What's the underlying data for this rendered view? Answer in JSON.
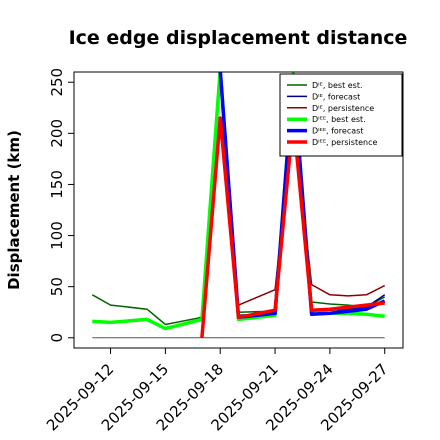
{
  "chart_data": {
    "type": "line",
    "title": "Ice edge displacement distance",
    "ylabel": "Displacement (km)",
    "xlabel": "",
    "ylim": [
      -10,
      260
    ],
    "yticks": [
      0,
      50,
      100,
      150,
      200,
      250
    ],
    "xlim": [
      "2025-09-10",
      "2025-09-28"
    ],
    "xticks": [
      "2025-09-12",
      "2025-09-15",
      "2025-09-18",
      "2025-09-21",
      "2025-09-24",
      "2025-09-27"
    ],
    "highlight_tick": "2025-09-18",
    "highlight_color": "#228B22",
    "grid": false,
    "legend_position": "top-right",
    "series": [
      {
        "name": "Dᴵᴱ, best est.",
        "color": "#006400",
        "lw": 1.5,
        "x": [
          "2025-09-11",
          "2025-09-12",
          "2025-09-14",
          "2025-09-15",
          "2025-09-17",
          "2025-09-18",
          "2025-09-19",
          "2025-09-21",
          "2025-09-22",
          "2025-09-23",
          "2025-09-24",
          "2025-09-25",
          "2025-09-26",
          "2025-09-27"
        ],
        "y": [
          42,
          32,
          28,
          13,
          20,
          265,
          25,
          26,
          260,
          35,
          33,
          32,
          30,
          40
        ]
      },
      {
        "name": "Dᴵᴱ, forecast",
        "color": "#00008B",
        "lw": 1.5,
        "x": [
          "2025-09-11",
          "2025-09-12",
          "2025-09-14",
          "2025-09-15",
          "2025-09-17",
          "2025-09-18",
          "2025-09-19",
          "2025-09-21",
          "2025-09-22",
          "2025-09-23",
          "2025-09-24",
          "2025-09-25",
          "2025-09-26",
          "2025-09-27"
        ],
        "y": [
          null,
          null,
          null,
          null,
          null,
          265,
          22,
          24,
          260,
          28,
          27,
          28,
          30,
          42
        ]
      },
      {
        "name": "Dᴵᴱ, persistence",
        "color": "#8B0000",
        "lw": 1.5,
        "x": [
          "2025-09-11",
          "2025-09-12",
          "2025-09-14",
          "2025-09-15",
          "2025-09-17",
          "2025-09-18",
          "2025-09-19",
          "2025-09-21",
          "2025-09-22",
          "2025-09-23",
          "2025-09-24",
          "2025-09-25",
          "2025-09-26",
          "2025-09-27"
        ],
        "y": [
          null,
          null,
          null,
          null,
          0,
          215,
          32,
          47,
          220,
          52,
          42,
          41,
          42,
          51
        ]
      },
      {
        "name": "Dᴵᴱᴱ, best est.",
        "color": "#00FF00",
        "lw": 3.5,
        "x": [
          "2025-09-11",
          "2025-09-12",
          "2025-09-14",
          "2025-09-15",
          "2025-09-17",
          "2025-09-18",
          "2025-09-19",
          "2025-09-21",
          "2025-09-22",
          "2025-09-23",
          "2025-09-24",
          "2025-09-25",
          "2025-09-26",
          "2025-09-27"
        ],
        "y": [
          16,
          15,
          18,
          9,
          18,
          262,
          18,
          22,
          258,
          25,
          24,
          24,
          23,
          21
        ]
      },
      {
        "name": "Dᴵᴱᴱ, forecast",
        "color": "#0000FF",
        "lw": 3.5,
        "x": [
          "2025-09-11",
          "2025-09-12",
          "2025-09-14",
          "2025-09-15",
          "2025-09-17",
          "2025-09-18",
          "2025-09-19",
          "2025-09-21",
          "2025-09-22",
          "2025-09-23",
          "2025-09-24",
          "2025-09-25",
          "2025-09-26",
          "2025-09-27"
        ],
        "y": [
          null,
          null,
          null,
          null,
          null,
          262,
          20,
          24,
          255,
          23,
          24,
          26,
          28,
          36
        ]
      },
      {
        "name": "Dᴵᴱᴱ, persistence",
        "color": "#FF0000",
        "lw": 3.5,
        "x": [
          "2025-09-11",
          "2025-09-12",
          "2025-09-14",
          "2025-09-15",
          "2025-09-17",
          "2025-09-18",
          "2025-09-19",
          "2025-09-21",
          "2025-09-22",
          "2025-09-23",
          "2025-09-24",
          "2025-09-25",
          "2025-09-26",
          "2025-09-27"
        ],
        "y": [
          null,
          null,
          null,
          null,
          0,
          215,
          20,
          27,
          215,
          27,
          28,
          30,
          32,
          34
        ]
      }
    ],
    "hline": {
      "y": 0,
      "color": "#555555"
    }
  }
}
